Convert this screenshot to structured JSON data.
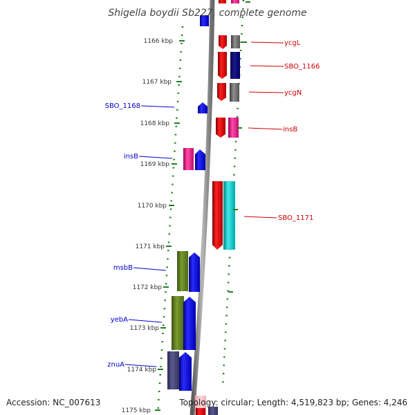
{
  "title": "Shigella boydii Sb227, complete genome",
  "accession": "Accession: NC_007613",
  "summary": "Topology: circular; Length: 4,519,823 bp; Genes: 4,246",
  "colors": {
    "left_label": "#0000cc",
    "right_label": "#cc0000",
    "tick_dots": "#1f7a1f",
    "backbone": "#8a8a8a"
  },
  "kbp_labels": [
    "1166 kbp",
    "1167 kbp",
    "1168 kbp",
    "1169 kbp",
    "1170 kbp",
    "1171 kbp",
    "1172 kbp",
    "1173 kbp",
    "1174 kbp",
    "1175 kbp"
  ],
  "left_genes": [
    "SBO_1168",
    "insB",
    "msbB",
    "yebA",
    "znuA"
  ],
  "right_genes": [
    "ycgL",
    "SBO_1166",
    "ycgN",
    "insB",
    "SBO_1171"
  ]
}
